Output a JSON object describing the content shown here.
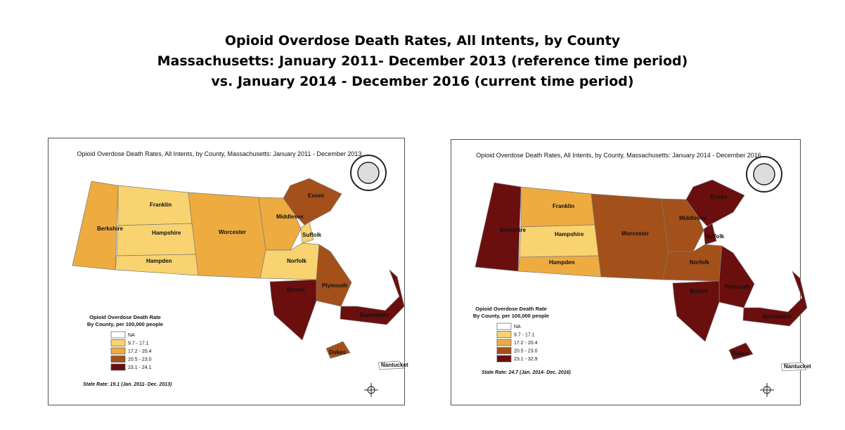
{
  "header": {
    "title": [
      "Opioid Overdose Death Rates, All Intents, by County",
      "Massachusetts: January 2011- December 2013 (reference time period)",
      "vs. January 2014 - December 2016 (current time period)"
    ]
  },
  "maps": [
    {
      "title": "Opioid Overdose Death Rates, All Intents, by County, Massachusetts: January 2011 - December 2013",
      "legend": {
        "title": [
          "Opioid Overdose Death Rate",
          "By County, per 100,000 people"
        ],
        "items": [
          {
            "label": "NA",
            "color": "#ffffff"
          },
          {
            "label": "9.7 - 17.1",
            "color": "#f9d36f"
          },
          {
            "label": "17.2 - 20.4",
            "color": "#eeab40"
          },
          {
            "label": "20.5 - 23.0",
            "color": "#a4501b"
          },
          {
            "label": "23.1 - 24.1",
            "color": "#6b0e0e"
          }
        ]
      },
      "state_rate": "State Rate: 19.1 (Jan. 2011- Dec. 2013)",
      "counties": [
        {
          "name": "Berkshire",
          "color": "#eeab40"
        },
        {
          "name": "Franklin",
          "color": "#f9d36f"
        },
        {
          "name": "Hampshire",
          "color": "#f9d36f"
        },
        {
          "name": "Hampden",
          "color": "#f9d36f"
        },
        {
          "name": "Worcester",
          "color": "#eeab40"
        },
        {
          "name": "Middlesex",
          "color": "#eeab40"
        },
        {
          "name": "Essex",
          "color": "#a4501b"
        },
        {
          "name": "Suffolk",
          "color": "#f9d36f"
        },
        {
          "name": "Norfolk",
          "color": "#f9d36f"
        },
        {
          "name": "Plymouth",
          "color": "#a4501b"
        },
        {
          "name": "Bristol",
          "color": "#6b0e0e"
        },
        {
          "name": "Barnstable",
          "color": "#6b0e0e"
        },
        {
          "name": "Dukes",
          "color": "#a4501b"
        },
        {
          "name": "Nantucket",
          "color": "#ffffff"
        }
      ]
    },
    {
      "title": "Opioid Overdose Death Rates, All Intents, by County, Massachusetts: January 2014 - December 2016",
      "legend": {
        "title": [
          "Opioid Overdose Death Rate",
          "By County, per 100,000 people"
        ],
        "items": [
          {
            "label": "NA",
            "color": "#ffffff"
          },
          {
            "label": "9.7 - 17.1",
            "color": "#f9d36f"
          },
          {
            "label": "17.2 - 20.4",
            "color": "#eeab40"
          },
          {
            "label": "20.5 - 23.0",
            "color": "#a4501b"
          },
          {
            "label": "23.1 - 32.9",
            "color": "#6b0e0e"
          }
        ]
      },
      "state_rate": "State Rate: 24.7 (Jan. 2014- Dec. 2016)",
      "counties": [
        {
          "name": "Berkshire",
          "color": "#6b0e0e"
        },
        {
          "name": "Franklin",
          "color": "#eeab40"
        },
        {
          "name": "Hampshire",
          "color": "#f9d36f"
        },
        {
          "name": "Hampden",
          "color": "#eeab40"
        },
        {
          "name": "Worcester",
          "color": "#a4501b"
        },
        {
          "name": "Middlesex",
          "color": "#a4501b"
        },
        {
          "name": "Essex",
          "color": "#6b0e0e"
        },
        {
          "name": "Suffolk",
          "color": "#6b0e0e"
        },
        {
          "name": "Norfolk",
          "color": "#a4501b"
        },
        {
          "name": "Plymouth",
          "color": "#6b0e0e"
        },
        {
          "name": "Bristol",
          "color": "#6b0e0e"
        },
        {
          "name": "Barnstable",
          "color": "#6b0e0e"
        },
        {
          "name": "Dukes",
          "color": "#6b0e0e"
        },
        {
          "name": "Nantucket",
          "color": "#ffffff"
        }
      ]
    }
  ]
}
